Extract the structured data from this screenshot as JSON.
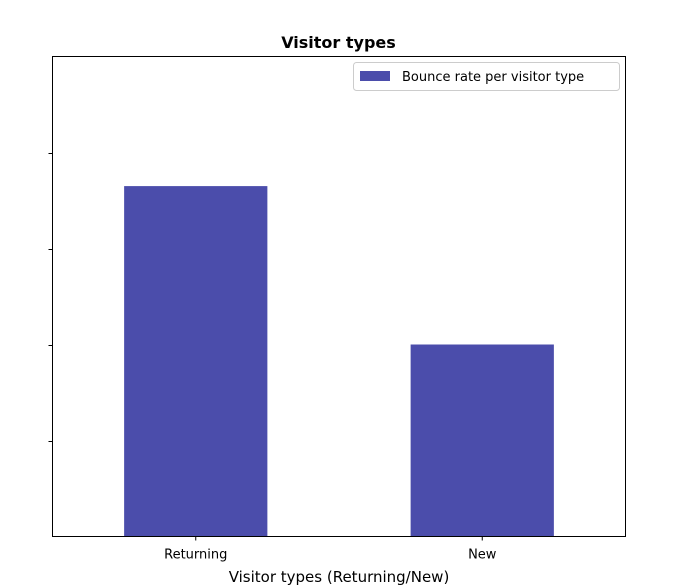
{
  "chart_data": {
    "type": "bar",
    "title": "Visitor types",
    "xlabel": "Visitor types (Returning/New)",
    "ylabel": "",
    "categories": [
      "Returning",
      "New"
    ],
    "series": [
      {
        "name": "Bounce rate per visitor type",
        "values": [
          0.73,
          0.4
        ]
      }
    ],
    "ylim": [
      0,
      1.0
    ],
    "yticks": [
      0.2,
      0.4,
      0.6,
      0.8
    ],
    "ytick_labels_visible": false,
    "grid": false,
    "legend": "top-right",
    "bar_color": "#4b4dab"
  }
}
